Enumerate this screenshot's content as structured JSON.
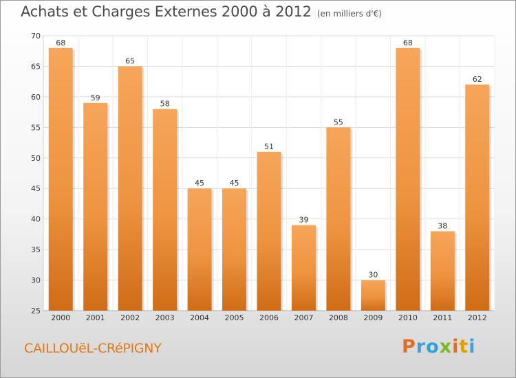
{
  "header": {
    "title": "Achats et Charges Externes 2000 à 2012",
    "unit": "(en milliers d'€)"
  },
  "footer": {
    "commune": "CAILLOUëL-CRéPIGNY",
    "logo_letters": [
      "P",
      "r",
      "o",
      "x",
      "i",
      "t",
      "i"
    ]
  },
  "colors": {
    "bar_light": "#f6a55a",
    "bar_dark": "#d06c16",
    "logo_letters": [
      "#e46d24",
      "#3aa3db",
      "#2aa4da",
      "#7bb728",
      "#e46d24",
      "#e0a100",
      "#3aa3db"
    ]
  },
  "chart_data": {
    "type": "bar",
    "title": "Achats et Charges Externes 2000 à 2012",
    "categories": [
      "2000",
      "2001",
      "2002",
      "2003",
      "2004",
      "2005",
      "2006",
      "2007",
      "2008",
      "2009",
      "2010",
      "2011",
      "2012"
    ],
    "values": [
      68,
      59,
      65,
      58,
      45,
      45,
      51,
      39,
      55,
      30,
      68,
      38,
      62
    ],
    "ylim": [
      25,
      70
    ],
    "yticks": [
      25,
      30,
      35,
      40,
      45,
      50,
      55,
      60,
      65,
      70
    ],
    "grid": true,
    "legend": "none"
  }
}
